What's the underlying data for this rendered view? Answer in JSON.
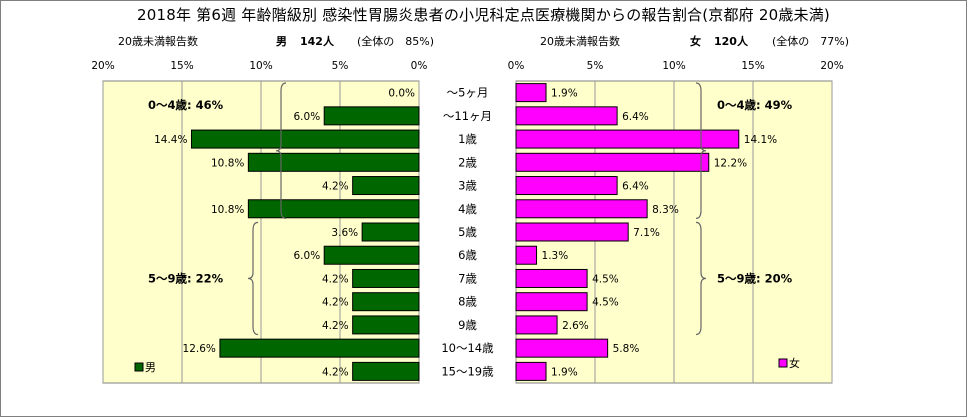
{
  "title": "2018年 第6週 年齢階級別 感染性胃腸炎患者の小児科定点医療機関からの報告割合(京都府 20歳未満)",
  "left_header": {
    "axis_caption": "20歳未満報告数",
    "group_label": "男",
    "count": "142人",
    "share": "(全体の　85%)"
  },
  "right_header": {
    "axis_caption": "20歳未満報告数",
    "group_label": "女",
    "count": "120人",
    "share": "(全体の　77%)"
  },
  "chart_data": [
    {
      "type": "bar",
      "orientation": "horizontal",
      "direction": "right-to-left",
      "categories": [
        "～5ヶ月",
        "～11ヶ月",
        "1歳",
        "2歳",
        "3歳",
        "4歳",
        "5歳",
        "6歳",
        "7歳",
        "8歳",
        "9歳",
        "10～14歳",
        "15～19歳"
      ],
      "series": [
        {
          "name": "男",
          "values": [
            0.0,
            6.0,
            14.4,
            10.8,
            4.2,
            10.8,
            3.6,
            6.0,
            4.2,
            4.2,
            4.2,
            12.6,
            4.2
          ],
          "labels": [
            "0.0%",
            "6.0%",
            "14.4%",
            "10.8%",
            "4.2%",
            "10.8%",
            "3.6%",
            "6.0%",
            "4.2%",
            "4.2%",
            "4.2%",
            "12.6%",
            "4.2%"
          ],
          "color": "#006600"
        }
      ],
      "xlim": [
        0,
        20
      ],
      "ticks": [
        "0%",
        "5%",
        "10%",
        "15%",
        "20%"
      ],
      "background": "#ffffcc",
      "grid": true,
      "legend_position": "bottom-left",
      "group_annotations": [
        {
          "text": "0～4歳: 46%",
          "from": 0,
          "to": 5
        },
        {
          "text": "5～9歳: 22%",
          "from": 6,
          "to": 10
        }
      ]
    },
    {
      "type": "bar",
      "orientation": "horizontal",
      "direction": "left-to-right",
      "categories": [
        "～5ヶ月",
        "～11ヶ月",
        "1歳",
        "2歳",
        "3歳",
        "4歳",
        "5歳",
        "6歳",
        "7歳",
        "8歳",
        "9歳",
        "10～14歳",
        "15～19歳"
      ],
      "series": [
        {
          "name": "女",
          "values": [
            1.9,
            6.4,
            14.1,
            12.2,
            6.4,
            8.3,
            7.1,
            1.3,
            4.5,
            4.5,
            2.6,
            5.8,
            1.9
          ],
          "labels": [
            "1.9%",
            "6.4%",
            "14.1%",
            "12.2%",
            "6.4%",
            "8.3%",
            "7.1%",
            "1.3%",
            "4.5%",
            "4.5%",
            "2.6%",
            "5.8%",
            "1.9%"
          ],
          "color": "#ff00ff"
        }
      ],
      "xlim": [
        0,
        20
      ],
      "ticks": [
        "0%",
        "5%",
        "10%",
        "15%",
        "20%"
      ],
      "background": "#ffffcc",
      "grid": true,
      "legend_position": "bottom-right",
      "group_annotations": [
        {
          "text": "0～4歳: 49%",
          "from": 0,
          "to": 5
        },
        {
          "text": "5～9歳: 20%",
          "from": 6,
          "to": 10
        }
      ]
    }
  ]
}
